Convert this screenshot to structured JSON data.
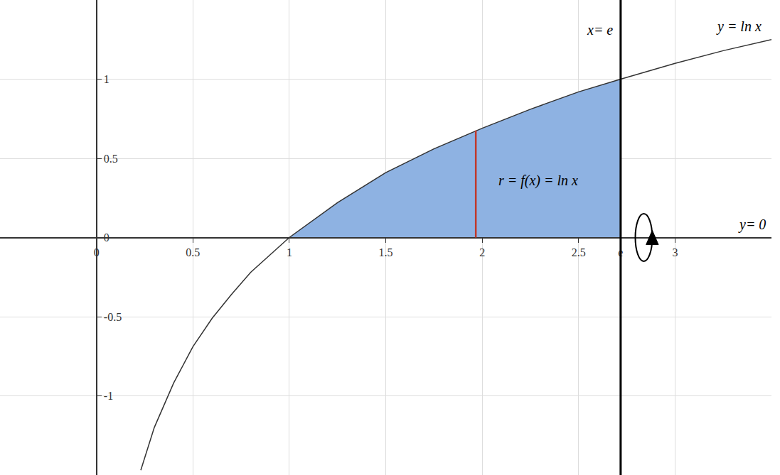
{
  "chart_data": {
    "type": "line",
    "x": [
      0.23,
      0.3,
      0.4,
      0.5,
      0.6,
      0.7,
      0.8,
      0.9,
      1,
      1.25,
      1.5,
      1.75,
      2,
      2.25,
      2.5,
      2.718,
      3,
      3.25,
      3.5
    ],
    "series": [
      {
        "name": "y = ln x",
        "color": "#333333",
        "type": "line",
        "values": [
          -1.47,
          -1.2,
          -0.92,
          -0.69,
          -0.51,
          -0.36,
          -0.22,
          -0.11,
          0,
          0.22,
          0.41,
          0.56,
          0.69,
          0.81,
          0.92,
          1,
          1.1,
          1.18,
          1.25
        ]
      },
      {
        "color": "#8eb2e2",
        "type": "area",
        "values": [
          null,
          null,
          null,
          null,
          null,
          null,
          null,
          null,
          0,
          0.22,
          0.41,
          0.56,
          0.69,
          0.81,
          0.92,
          1,
          null,
          null,
          null
        ]
      }
    ],
    "segments": [
      {
        "x": 1.967,
        "y0": 0,
        "y1": 0.676,
        "color": "#c0392b"
      }
    ],
    "vlines": [
      {
        "x": 2.718,
        "color": "#000000"
      }
    ],
    "annotations": [
      {
        "text": "x= e",
        "x": 2.61,
        "y": 1.31
      },
      {
        "text": "y = ln x",
        "x": 3.33,
        "y": 1.33
      },
      {
        "text": "r = f(x) = ln x",
        "x": 2.29,
        "y": 0.36
      },
      {
        "text": "y= 0",
        "x": 3.4,
        "y": 0.08
      }
    ],
    "xlim": [
      -0.5,
      3.5
    ],
    "ylim": [
      -1.5,
      1.5
    ],
    "xticks": [
      0,
      0.5,
      1,
      1.5,
      2,
      2.5,
      3,
      {
        "value": 2.718,
        "label": "e"
      }
    ],
    "yticks": [
      -1,
      -0.5,
      0,
      0.5,
      1
    ],
    "grid": true
  }
}
